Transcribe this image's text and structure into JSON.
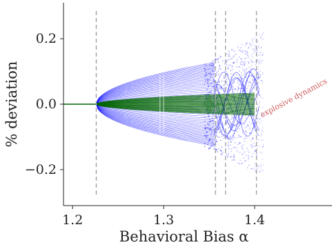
{
  "chart_data": {
    "type": "scatter",
    "title": "",
    "xlabel": "Behavioral Bias α",
    "ylabel": "% deviation",
    "xlim": [
      1.19,
      1.485
    ],
    "ylim": [
      -0.31,
      0.31
    ],
    "x_ticks": [
      {
        "value": 1.2,
        "label": "1.2"
      },
      {
        "value": 1.3,
        "label": "1.3"
      },
      {
        "value": 1.4,
        "label": "1.4"
      }
    ],
    "y_ticks": [
      {
        "value": 0.2,
        "label": "0.2"
      },
      {
        "value": 0.0,
        "label": "0.0"
      },
      {
        "value": -0.2,
        "label": "−0.2"
      }
    ],
    "grid": false,
    "series": [
      {
        "color": "#0000ff",
        "description_role": "bifurcation_outer"
      },
      {
        "color": "#006400",
        "description_role": "bifurcation_inner"
      }
    ],
    "vertical_lines": [
      1.226,
      1.357,
      1.368,
      1.402
    ],
    "branch_points": {
      "first_bifurcation_alpha": 1.226,
      "outer_amplitude_at_1_357": 0.13,
      "inner_amplitude_at_1_40": 0.035,
      "max_scatter_amplitude": 0.22
    },
    "annotation": {
      "text": "explosive dynamics",
      "x": 1.405,
      "y": -0.02,
      "color": "#cd5c5c"
    }
  }
}
